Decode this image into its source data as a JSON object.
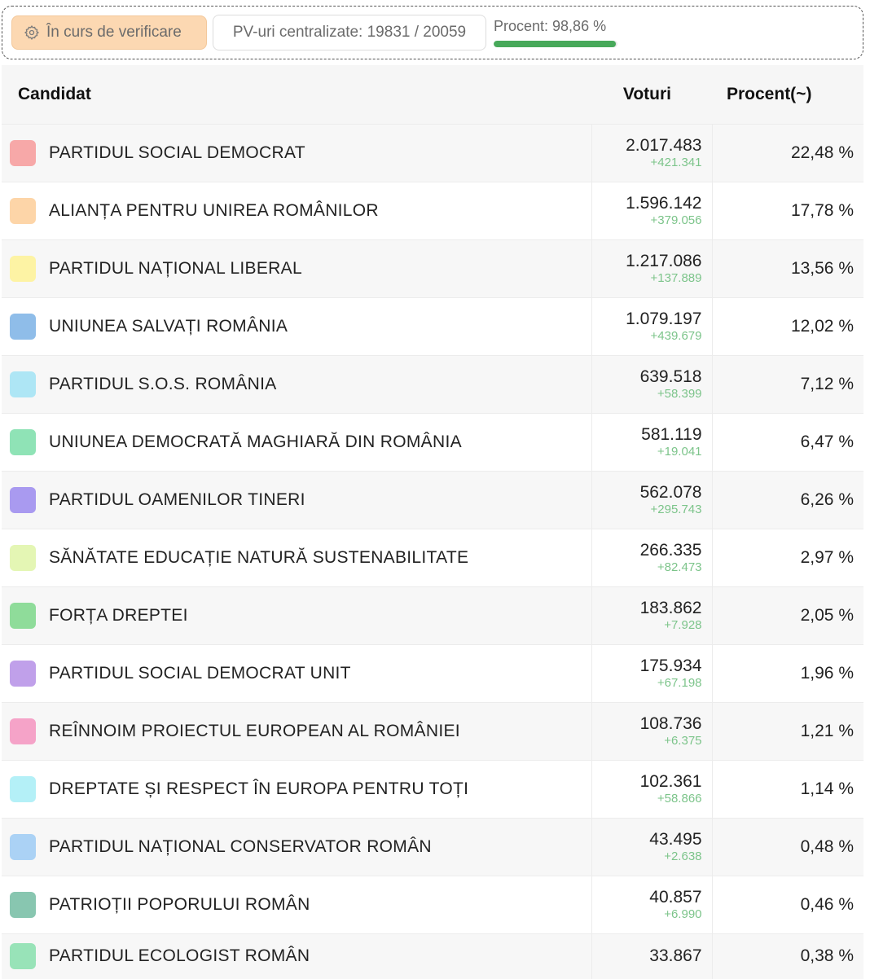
{
  "status": {
    "label": "În curs de verificare",
    "icon": "gear-icon",
    "pv_text": "PV-uri centralizate: 19831 / 20059",
    "progress_label": "Procent: 98,86 %",
    "progress_fraction": 0.9886,
    "progress_color": "#47a95a"
  },
  "table": {
    "headers": {
      "candidate": "Candidat",
      "votes": "Voturi",
      "percent": "Procent(~)"
    },
    "rows": [
      {
        "name": "PARTIDUL SOCIAL DEMOCRAT",
        "votes": "2.017.483",
        "delta": "+421.341",
        "percent": "22,48 %",
        "color": "#f7a8a8"
      },
      {
        "name": "ALIANȚA PENTRU UNIREA ROMÂNILOR",
        "votes": "1.596.142",
        "delta": "+379.056",
        "percent": "17,78 %",
        "color": "#fdd5a8"
      },
      {
        "name": "PARTIDUL NAȚIONAL LIBERAL",
        "votes": "1.217.086",
        "delta": "+137.889",
        "percent": "13,56 %",
        "color": "#fdf3a4"
      },
      {
        "name": "UNIUNEA SALVAȚI ROMÂNIA",
        "votes": "1.079.197",
        "delta": "+439.679",
        "percent": "12,02 %",
        "color": "#8fbde9"
      },
      {
        "name": "PARTIDUL S.O.S. ROMÂNIA",
        "votes": "639.518",
        "delta": "+58.399",
        "percent": "7,12 %",
        "color": "#aee6f5"
      },
      {
        "name": "UNIUNEA DEMOCRATĂ MAGHIARĂ DIN ROMÂNIA",
        "votes": "581.119",
        "delta": "+19.041",
        "percent": "6,47 %",
        "color": "#8fe3b6"
      },
      {
        "name": "PARTIDUL OAMENILOR TINERI",
        "votes": "562.078",
        "delta": "+295.743",
        "percent": "6,26 %",
        "color": "#a99af0"
      },
      {
        "name": "SĂNĂTATE EDUCAȚIE NATURĂ SUSTENABILITATE",
        "votes": "266.335",
        "delta": "+82.473",
        "percent": "2,97 %",
        "color": "#e4f6b4"
      },
      {
        "name": "FORȚA DREPTEI",
        "votes": "183.862",
        "delta": "+7.928",
        "percent": "2,05 %",
        "color": "#8fdc9a"
      },
      {
        "name": "PARTIDUL SOCIAL DEMOCRAT UNIT",
        "votes": "175.934",
        "delta": "+67.198",
        "percent": "1,96 %",
        "color": "#c0a0ea"
      },
      {
        "name": "REÎNNOIM PROIECTUL EUROPEAN AL ROMÂNIEI",
        "votes": "108.736",
        "delta": "+6.375",
        "percent": "1,21 %",
        "color": "#f5a3c8"
      },
      {
        "name": "DREPTATE ȘI RESPECT ÎN EUROPA PENTRU TOȚI",
        "votes": "102.361",
        "delta": "+58.866",
        "percent": "1,14 %",
        "color": "#b4f0f7"
      },
      {
        "name": "PARTIDUL NAȚIONAL CONSERVATOR ROMÂN",
        "votes": "43.495",
        "delta": "+2.638",
        "percent": "0,48 %",
        "color": "#abd2f5"
      },
      {
        "name": "PATRIOȚII POPORULUI ROMÂN",
        "votes": "40.857",
        "delta": "+6.990",
        "percent": "0,46 %",
        "color": "#88c6b0"
      },
      {
        "name": "PARTIDUL ECOLOGIST ROMÂN",
        "votes": "33.867",
        "delta": "",
        "percent": "0,38 %",
        "color": "#98e3b8"
      }
    ]
  }
}
